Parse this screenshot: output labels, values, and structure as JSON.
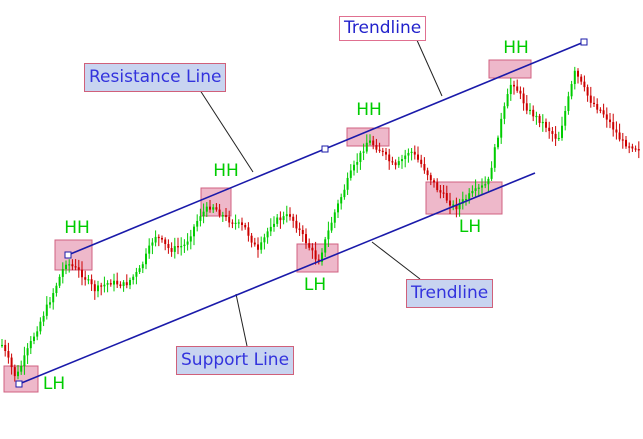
{
  "chart_data": {
    "type": "candlestick",
    "title": "",
    "xlabel": "",
    "ylabel": "",
    "grid": false,
    "colors": {
      "bullish": "#00cc00",
      "bearish": "#cc0000",
      "trendline": "#1a1aaa",
      "highlight_fill": "#e8a0b8",
      "highlight_stroke": "#d06080",
      "marker_text": "#00cc00",
      "callout_text": "#3333dd",
      "callout_fill": "#c8d4f0",
      "callout_border": "#d0607a"
    },
    "trendlines": [
      {
        "name": "resistance",
        "label": "Resistance Line"
      },
      {
        "name": "support",
        "label": "Support Line"
      }
    ],
    "annotations": [
      {
        "id": "hh1",
        "text": "HH"
      },
      {
        "id": "hh2",
        "text": "HH"
      },
      {
        "id": "hh3",
        "text": "HH"
      },
      {
        "id": "hh4",
        "text": "HH"
      },
      {
        "id": "lh1",
        "text": "LH"
      },
      {
        "id": "lh2",
        "text": "LH"
      },
      {
        "id": "lh3",
        "text": "LH"
      }
    ],
    "callouts": {
      "resistance": "Resistance Line",
      "trendline_top": "Trendline",
      "trendline_bottom": "Trendline",
      "support": "Support Line"
    }
  }
}
